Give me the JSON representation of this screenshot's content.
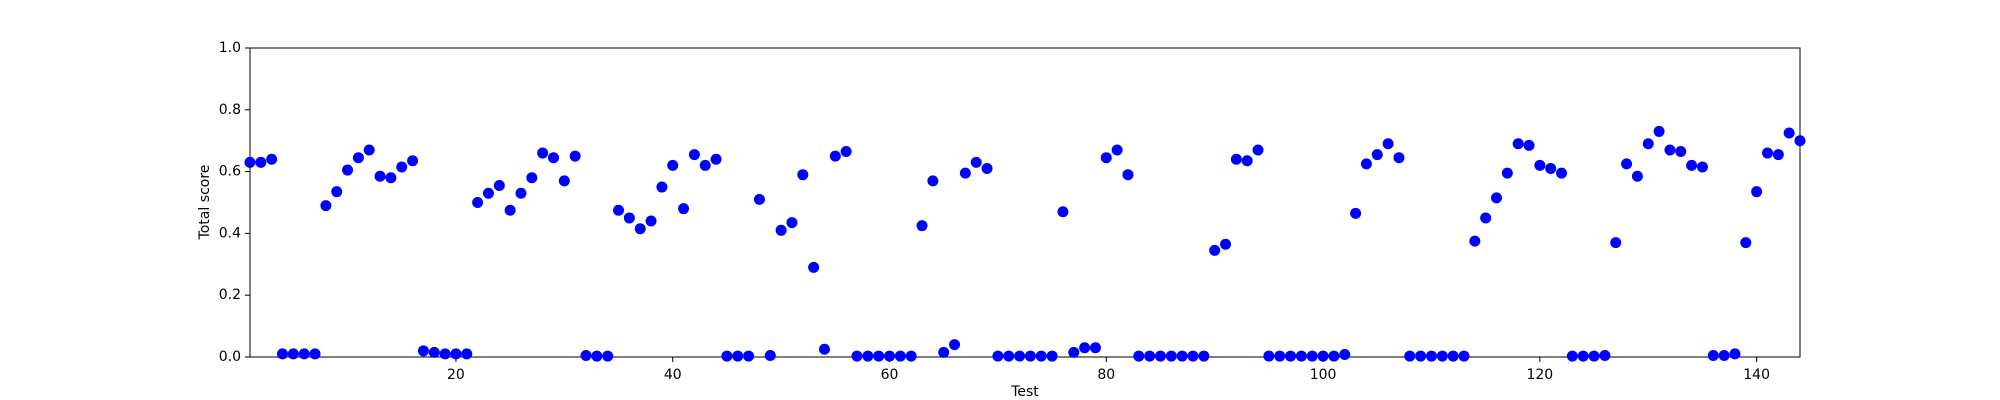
{
  "chart_data": {
    "type": "scatter",
    "xlabel": "Test",
    "ylabel": "Total score",
    "color": "#0000ff",
    "xlim": [
      1,
      144
    ],
    "ylim": [
      0,
      1
    ],
    "xticks": [
      20,
      40,
      60,
      80,
      100,
      120,
      140
    ],
    "yticks": [
      {
        "value": 0,
        "label": "0.0"
      },
      0.2,
      0.4,
      0.6,
      0.8,
      {
        "value": 1,
        "label": "1.0"
      }
    ],
    "x": [
      1,
      2,
      3,
      4,
      5,
      6,
      7,
      8,
      9,
      10,
      11,
      12,
      13,
      14,
      15,
      16,
      17,
      18,
      19,
      20,
      21,
      22,
      23,
      24,
      25,
      26,
      27,
      28,
      29,
      30,
      31,
      32,
      33,
      34,
      35,
      36,
      37,
      38,
      39,
      40,
      41,
      42,
      43,
      44,
      45,
      46,
      47,
      48,
      49,
      50,
      51,
      52,
      53,
      54,
      55,
      56,
      57,
      58,
      59,
      60,
      61,
      62,
      63,
      64,
      65,
      66,
      67,
      68,
      69,
      70,
      71,
      72,
      73,
      74,
      75,
      76,
      77,
      78,
      79,
      80,
      81,
      82,
      83,
      84,
      85,
      86,
      87,
      88,
      89,
      90,
      91,
      92,
      93,
      94,
      95,
      96,
      97,
      98,
      99,
      100,
      101,
      102,
      103,
      104,
      105,
      106,
      107,
      108,
      109,
      110,
      111,
      112,
      113,
      114,
      115,
      116,
      117,
      118,
      119,
      120,
      121,
      122,
      123,
      124,
      125,
      126,
      127,
      128,
      129,
      130,
      131,
      132,
      133,
      134,
      135,
      136,
      137,
      138,
      139,
      140,
      141,
      142,
      143,
      144
    ],
    "values": [
      0.63,
      0.63,
      0.64,
      0.01,
      0.01,
      0.01,
      0.01,
      0.49,
      0.535,
      0.605,
      0.645,
      0.67,
      0.585,
      0.58,
      0.615,
      0.635,
      0.02,
      0.015,
      0.01,
      0.01,
      0.01,
      0.5,
      0.53,
      0.555,
      0.475,
      0.53,
      0.58,
      0.66,
      0.645,
      0.57,
      0.65,
      0.005,
      0.003,
      0.003,
      0.475,
      0.45,
      0.415,
      0.44,
      0.55,
      0.62,
      0.48,
      0.655,
      0.62,
      0.64,
      0.003,
      0.003,
      0.003,
      0.51,
      0.005,
      0.41,
      0.435,
      0.59,
      0.29,
      0.025,
      0.65,
      0.665,
      0.003,
      0.003,
      0.003,
      0.003,
      0.003,
      0.003,
      0.425,
      0.57,
      0.015,
      0.04,
      0.595,
      0.63,
      0.61,
      0.003,
      0.003,
      0.003,
      0.003,
      0.003,
      0.003,
      0.47,
      0.015,
      0.03,
      0.03,
      0.645,
      0.67,
      0.59,
      0.003,
      0.003,
      0.003,
      0.003,
      0.003,
      0.003,
      0.003,
      0.345,
      0.365,
      0.64,
      0.635,
      0.67,
      0.003,
      0.003,
      0.003,
      0.003,
      0.003,
      0.003,
      0.003,
      0.008,
      0.465,
      0.625,
      0.655,
      0.69,
      0.645,
      0.003,
      0.003,
      0.003,
      0.003,
      0.003,
      0.003,
      0.375,
      0.45,
      0.515,
      0.595,
      0.69,
      0.685,
      0.62,
      0.61,
      0.595,
      0.003,
      0.003,
      0.003,
      0.005,
      0.37,
      0.625,
      0.585,
      0.69,
      0.73,
      0.67,
      0.665,
      0.62,
      0.615,
      0.005,
      0.005,
      0.01,
      0.37,
      0.535,
      0.66,
      0.655,
      0.725,
      0.7
    ]
  }
}
